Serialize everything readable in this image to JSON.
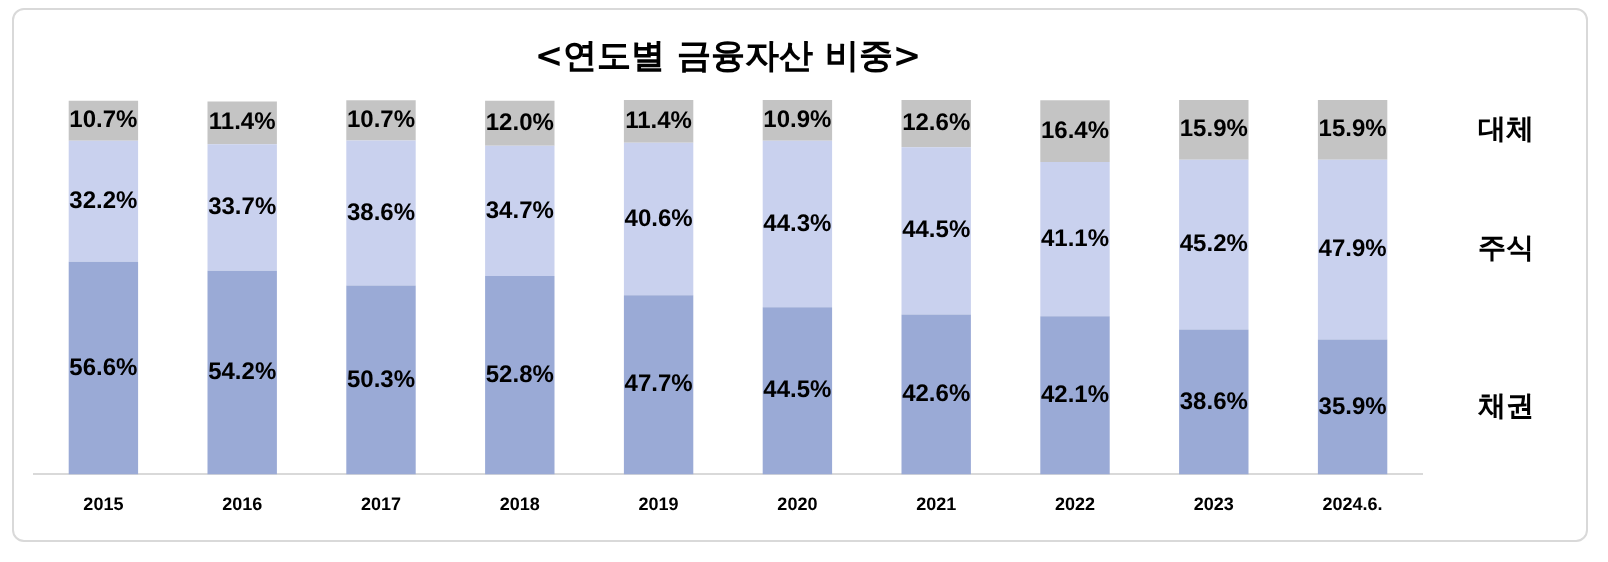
{
  "chart_data": {
    "type": "bar",
    "title": "<연도별 금융자산 비중>",
    "stacked": true,
    "tick_labels": "x",
    "grid": false,
    "legend": false,
    "ylim": [
      0,
      100
    ],
    "categories": [
      "2015",
      "2016",
      "2017",
      "2018",
      "2019",
      "2020",
      "2021",
      "2022",
      "2023",
      "2024.6."
    ],
    "series": [
      {
        "name": "채권",
        "color": "#9aaad6",
        "values": [
          56.6,
          54.2,
          50.3,
          52.8,
          47.7,
          44.5,
          42.6,
          42.1,
          38.6,
          35.9
        ],
        "value_labels": [
          "56.6%",
          "54.2%",
          "50.3%",
          "52.8%",
          "47.7%",
          "44.5%",
          "42.6%",
          "42.1%",
          "38.6%",
          "35.9%"
        ]
      },
      {
        "name": "주식",
        "color": "#c9d1ee",
        "values": [
          32.2,
          33.7,
          38.6,
          34.7,
          40.6,
          44.3,
          44.5,
          41.1,
          45.2,
          47.9
        ],
        "value_labels": [
          "32.2%",
          "33.7%",
          "38.6%",
          "34.7%",
          "40.6%",
          "44.3%",
          "44.5%",
          "41.1%",
          "45.2%",
          "47.9%"
        ]
      },
      {
        "name": "대체",
        "color": "#c4c4c4",
        "values": [
          10.7,
          11.4,
          10.7,
          12.0,
          11.4,
          10.9,
          12.6,
          16.4,
          15.9,
          15.9
        ],
        "value_labels": [
          "10.7%",
          "11.4%",
          "10.7%",
          "12.0%",
          "11.4%",
          "10.9%",
          "12.6%",
          "16.4%",
          "15.9%",
          "15.9%"
        ]
      }
    ]
  }
}
